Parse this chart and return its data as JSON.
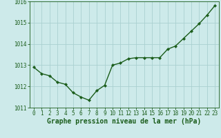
{
  "x": [
    0,
    1,
    2,
    3,
    4,
    5,
    6,
    7,
    8,
    9,
    10,
    11,
    12,
    13,
    14,
    15,
    16,
    17,
    18,
    19,
    20,
    21,
    22,
    23
  ],
  "y": [
    1012.9,
    1012.6,
    1012.5,
    1012.2,
    1012.1,
    1011.7,
    1011.5,
    1011.35,
    1011.8,
    1012.05,
    1013.0,
    1013.1,
    1013.3,
    1013.35,
    1013.35,
    1013.35,
    1013.35,
    1013.75,
    1013.9,
    1014.25,
    1014.6,
    1014.95,
    1015.35,
    1015.8
  ],
  "line_color": "#1a5c1a",
  "marker": "D",
  "marker_size": 2.2,
  "marker_color": "#1a5c1a",
  "background_color": "#cdeaea",
  "grid_color": "#aad0d0",
  "xlabel": "Graphe pression niveau de la mer (hPa)",
  "xlabel_color": "#1a5c1a",
  "xlabel_fontsize": 7.0,
  "ylim": [
    1011.0,
    1016.0
  ],
  "xlim_min": -0.5,
  "xlim_max": 23.5,
  "yticks": [
    1011,
    1012,
    1013,
    1014,
    1015,
    1016
  ],
  "xticks": [
    0,
    1,
    2,
    3,
    4,
    5,
    6,
    7,
    8,
    9,
    10,
    11,
    12,
    13,
    14,
    15,
    16,
    17,
    18,
    19,
    20,
    21,
    22,
    23
  ],
  "tick_color": "#1a5c1a",
  "tick_fontsize": 5.5,
  "line_width": 1.0
}
